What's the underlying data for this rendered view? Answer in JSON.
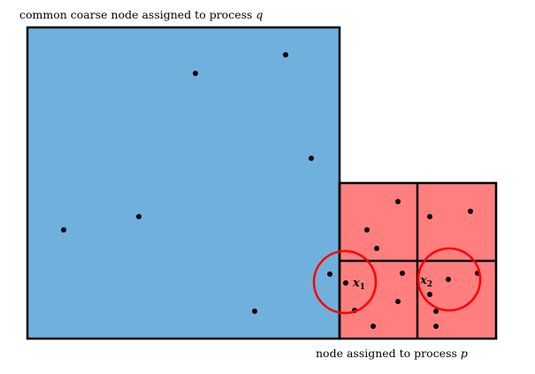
{
  "captions": {
    "coarse_node_text": "common coarse node assigned to process ",
    "coarse_node_var": "q",
    "fine_node_text": "node assigned to process ",
    "fine_node_var": "p"
  },
  "points_labels": {
    "x1_base": "x",
    "x1_sub": "1",
    "x2_base": "x",
    "x2_sub": "2"
  },
  "colors": {
    "coarse_fill": "#6fb1dc",
    "fine_fill": "#ff7f7f",
    "circle_stroke": "#ff0000",
    "outline": "#000000",
    "point": "#000000"
  }
}
